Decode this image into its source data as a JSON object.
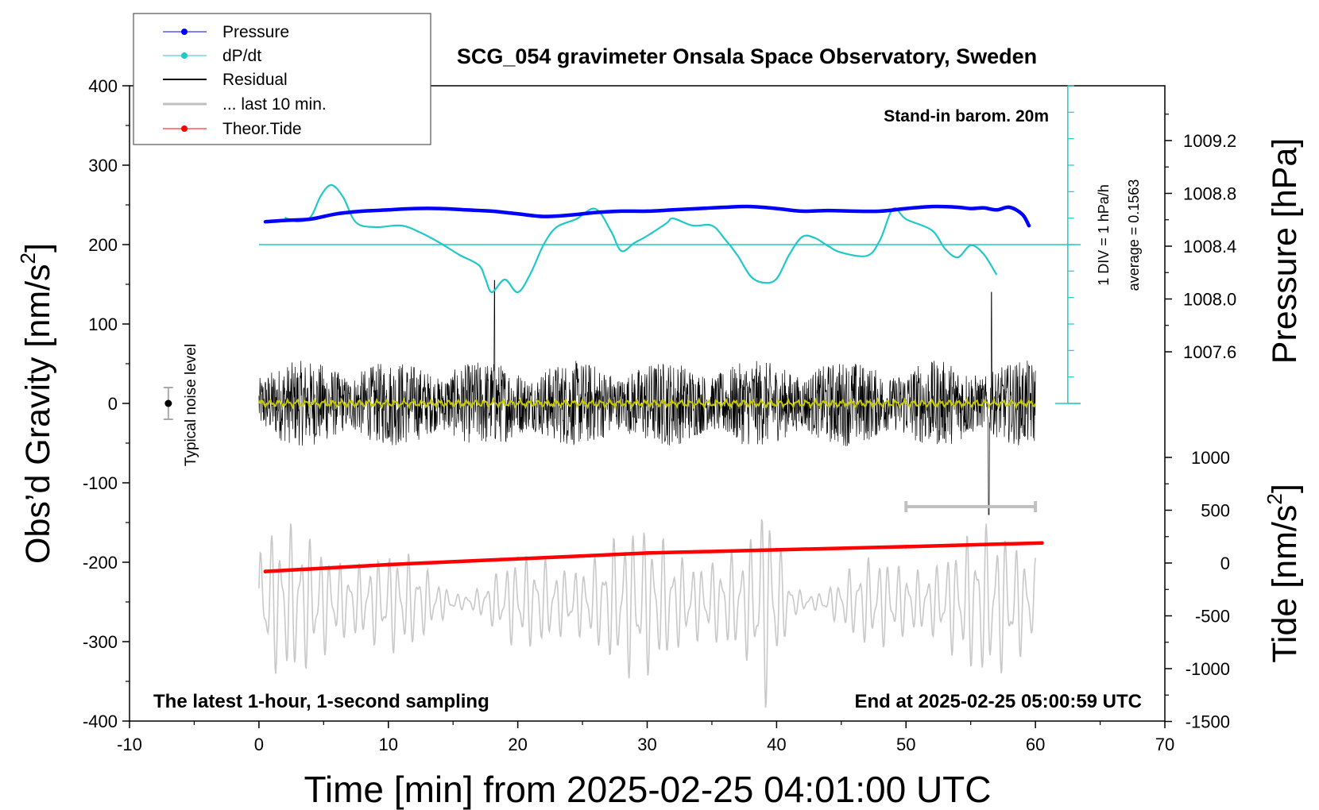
{
  "chart_data": {
    "type": "line",
    "title": "SCG_054 gravimeter Onsala Space Observatory, Sweden",
    "xlabel": "Time [min] from 2025-02-25 04:01:00 UTC",
    "ylabel_left": "Obs’d Gravity [nm/s",
    "ylabel_left_sup": "2",
    "ylabel_left_end": "]",
    "ylabel_right_top": "Pressure [hPa]",
    "ylabel_right_bottom": "Tide [nm/s",
    "ylabel_right_bottom_sup": "2",
    "ylabel_right_bottom_end": "]",
    "xlim": [
      -10,
      70
    ],
    "ylim": [
      -400,
      400
    ],
    "x_ticks": [
      -10,
      0,
      10,
      20,
      30,
      40,
      50,
      60,
      70
    ],
    "x_tick_labels": [
      "-10",
      "0",
      "10",
      "20",
      "30",
      "40",
      "50",
      "60",
      "70"
    ],
    "y_ticks": [
      -400,
      -300,
      -200,
      -100,
      0,
      100,
      200,
      300,
      400
    ],
    "y_tick_labels": [
      "-400",
      "-300",
      "-200",
      "-100",
      "0",
      "100",
      "200",
      "300",
      "400"
    ],
    "pressure_axis": {
      "ticks": [
        1007.6,
        1008.0,
        1008.4,
        1008.8,
        1009.2
      ],
      "tick_labels": [
        "1007.6",
        "1008.0",
        "1008.4",
        "1008.8",
        "1009.2"
      ]
    },
    "tide_axis": {
      "ticks": [
        -1500,
        -1000,
        -500,
        0,
        500,
        1000
      ],
      "tick_labels": [
        "-1500",
        "-1000",
        "-500",
        "0",
        "500",
        "1000"
      ]
    },
    "legend": {
      "placement": "top-left",
      "entries": [
        "Pressure",
        "dP/dt",
        "Residual",
        "... last 10 min.",
        "Theor.Tide"
      ]
    },
    "annotations": {
      "stand_in": "Stand-in barom. 20m",
      "div_label": "1 DIV = 1 hPa/h",
      "average_label": "average = 0.1563",
      "noise_label": "Typical noise level",
      "bottom_left": "The latest 1-hour, 1-second sampling",
      "bottom_right": "End at 2025-02-25 05:00:59 UTC"
    },
    "series": [
      {
        "name": "Pressure",
        "unit": "hPa",
        "color": "#0000ff",
        "points": [
          [
            0.5,
            1008.585
          ],
          [
            2,
            1008.595
          ],
          [
            4,
            1008.605
          ],
          [
            6,
            1008.645
          ],
          [
            8,
            1008.665
          ],
          [
            10,
            1008.675
          ],
          [
            12,
            1008.685
          ],
          [
            14,
            1008.685
          ],
          [
            16,
            1008.675
          ],
          [
            18,
            1008.665
          ],
          [
            20,
            1008.645
          ],
          [
            22,
            1008.625
          ],
          [
            24,
            1008.635
          ],
          [
            26,
            1008.655
          ],
          [
            28,
            1008.665
          ],
          [
            30,
            1008.665
          ],
          [
            32,
            1008.675
          ],
          [
            34,
            1008.685
          ],
          [
            36,
            1008.695
          ],
          [
            38,
            1008.7
          ],
          [
            40,
            1008.685
          ],
          [
            42,
            1008.665
          ],
          [
            44,
            1008.67
          ],
          [
            46,
            1008.665
          ],
          [
            48,
            1008.665
          ],
          [
            50,
            1008.685
          ],
          [
            52,
            1008.7
          ],
          [
            54,
            1008.695
          ],
          [
            55,
            1008.685
          ],
          [
            56,
            1008.69
          ],
          [
            57,
            1008.675
          ],
          [
            58,
            1008.695
          ],
          [
            59,
            1008.64
          ],
          [
            59.5,
            1008.555
          ]
        ]
      },
      {
        "name": "dP/dt",
        "unit": "nm/s2 display",
        "color": "#20c8c8",
        "average": 0.1563,
        "points": [
          [
            2,
            234
          ],
          [
            3,
            229
          ],
          [
            4,
            235
          ],
          [
            4.8,
            262
          ],
          [
            5.6,
            275
          ],
          [
            6.5,
            260
          ],
          [
            7.5,
            228
          ],
          [
            9,
            222
          ],
          [
            11,
            224
          ],
          [
            12.5,
            215
          ],
          [
            14,
            202
          ],
          [
            15.5,
            187
          ],
          [
            17,
            174
          ],
          [
            17.5,
            157
          ],
          [
            18,
            140
          ],
          [
            19,
            156
          ],
          [
            20,
            140
          ],
          [
            21,
            164
          ],
          [
            22,
            200
          ],
          [
            23,
            222
          ],
          [
            24.5,
            232
          ],
          [
            26,
            245
          ],
          [
            27.2,
            217
          ],
          [
            28,
            192
          ],
          [
            29,
            202
          ],
          [
            30,
            211
          ],
          [
            31.5,
            227
          ],
          [
            32,
            233
          ],
          [
            33.5,
            224
          ],
          [
            35,
            224
          ],
          [
            36,
            207
          ],
          [
            37,
            186
          ],
          [
            38,
            160
          ],
          [
            39,
            152
          ],
          [
            40,
            157
          ],
          [
            41,
            188
          ],
          [
            42,
            210
          ],
          [
            43,
            208
          ],
          [
            44,
            198
          ],
          [
            45,
            190
          ],
          [
            47,
            186
          ],
          [
            48,
            206
          ],
          [
            49,
            245
          ],
          [
            50,
            232
          ],
          [
            52,
            218
          ],
          [
            53,
            195
          ],
          [
            54,
            184
          ],
          [
            55,
            199
          ],
          [
            56,
            188
          ],
          [
            57,
            162
          ]
        ]
      },
      {
        "name": "Residual",
        "unit": "nm/s2",
        "color": "#000000",
        "x_range": [
          0,
          60
        ],
        "typical_amplitude": 45,
        "max": 155,
        "min": -140
      },
      {
        "name": "... last 10 min.",
        "unit": "nm/s2",
        "color": "#c0c0c0",
        "y": -130,
        "x_range": [
          50,
          60
        ]
      },
      {
        "name": "Theor.Tide",
        "unit": "nm/s2",
        "color": "#ff0000",
        "points": [
          [
            0.5,
            -80
          ],
          [
            10,
            -15
          ],
          [
            20,
            40
          ],
          [
            30,
            95
          ],
          [
            40,
            125
          ],
          [
            50,
            155
          ],
          [
            60.5,
            190
          ]
        ]
      },
      {
        "name": "Filtered residual",
        "unit": "nm/s2",
        "color": "#c8c800",
        "value": 0
      },
      {
        "name": "Gray oscillation",
        "unit": "nm/s2",
        "color": "#c8c8c8",
        "x_range": [
          0,
          60
        ],
        "center": -250
      }
    ]
  }
}
